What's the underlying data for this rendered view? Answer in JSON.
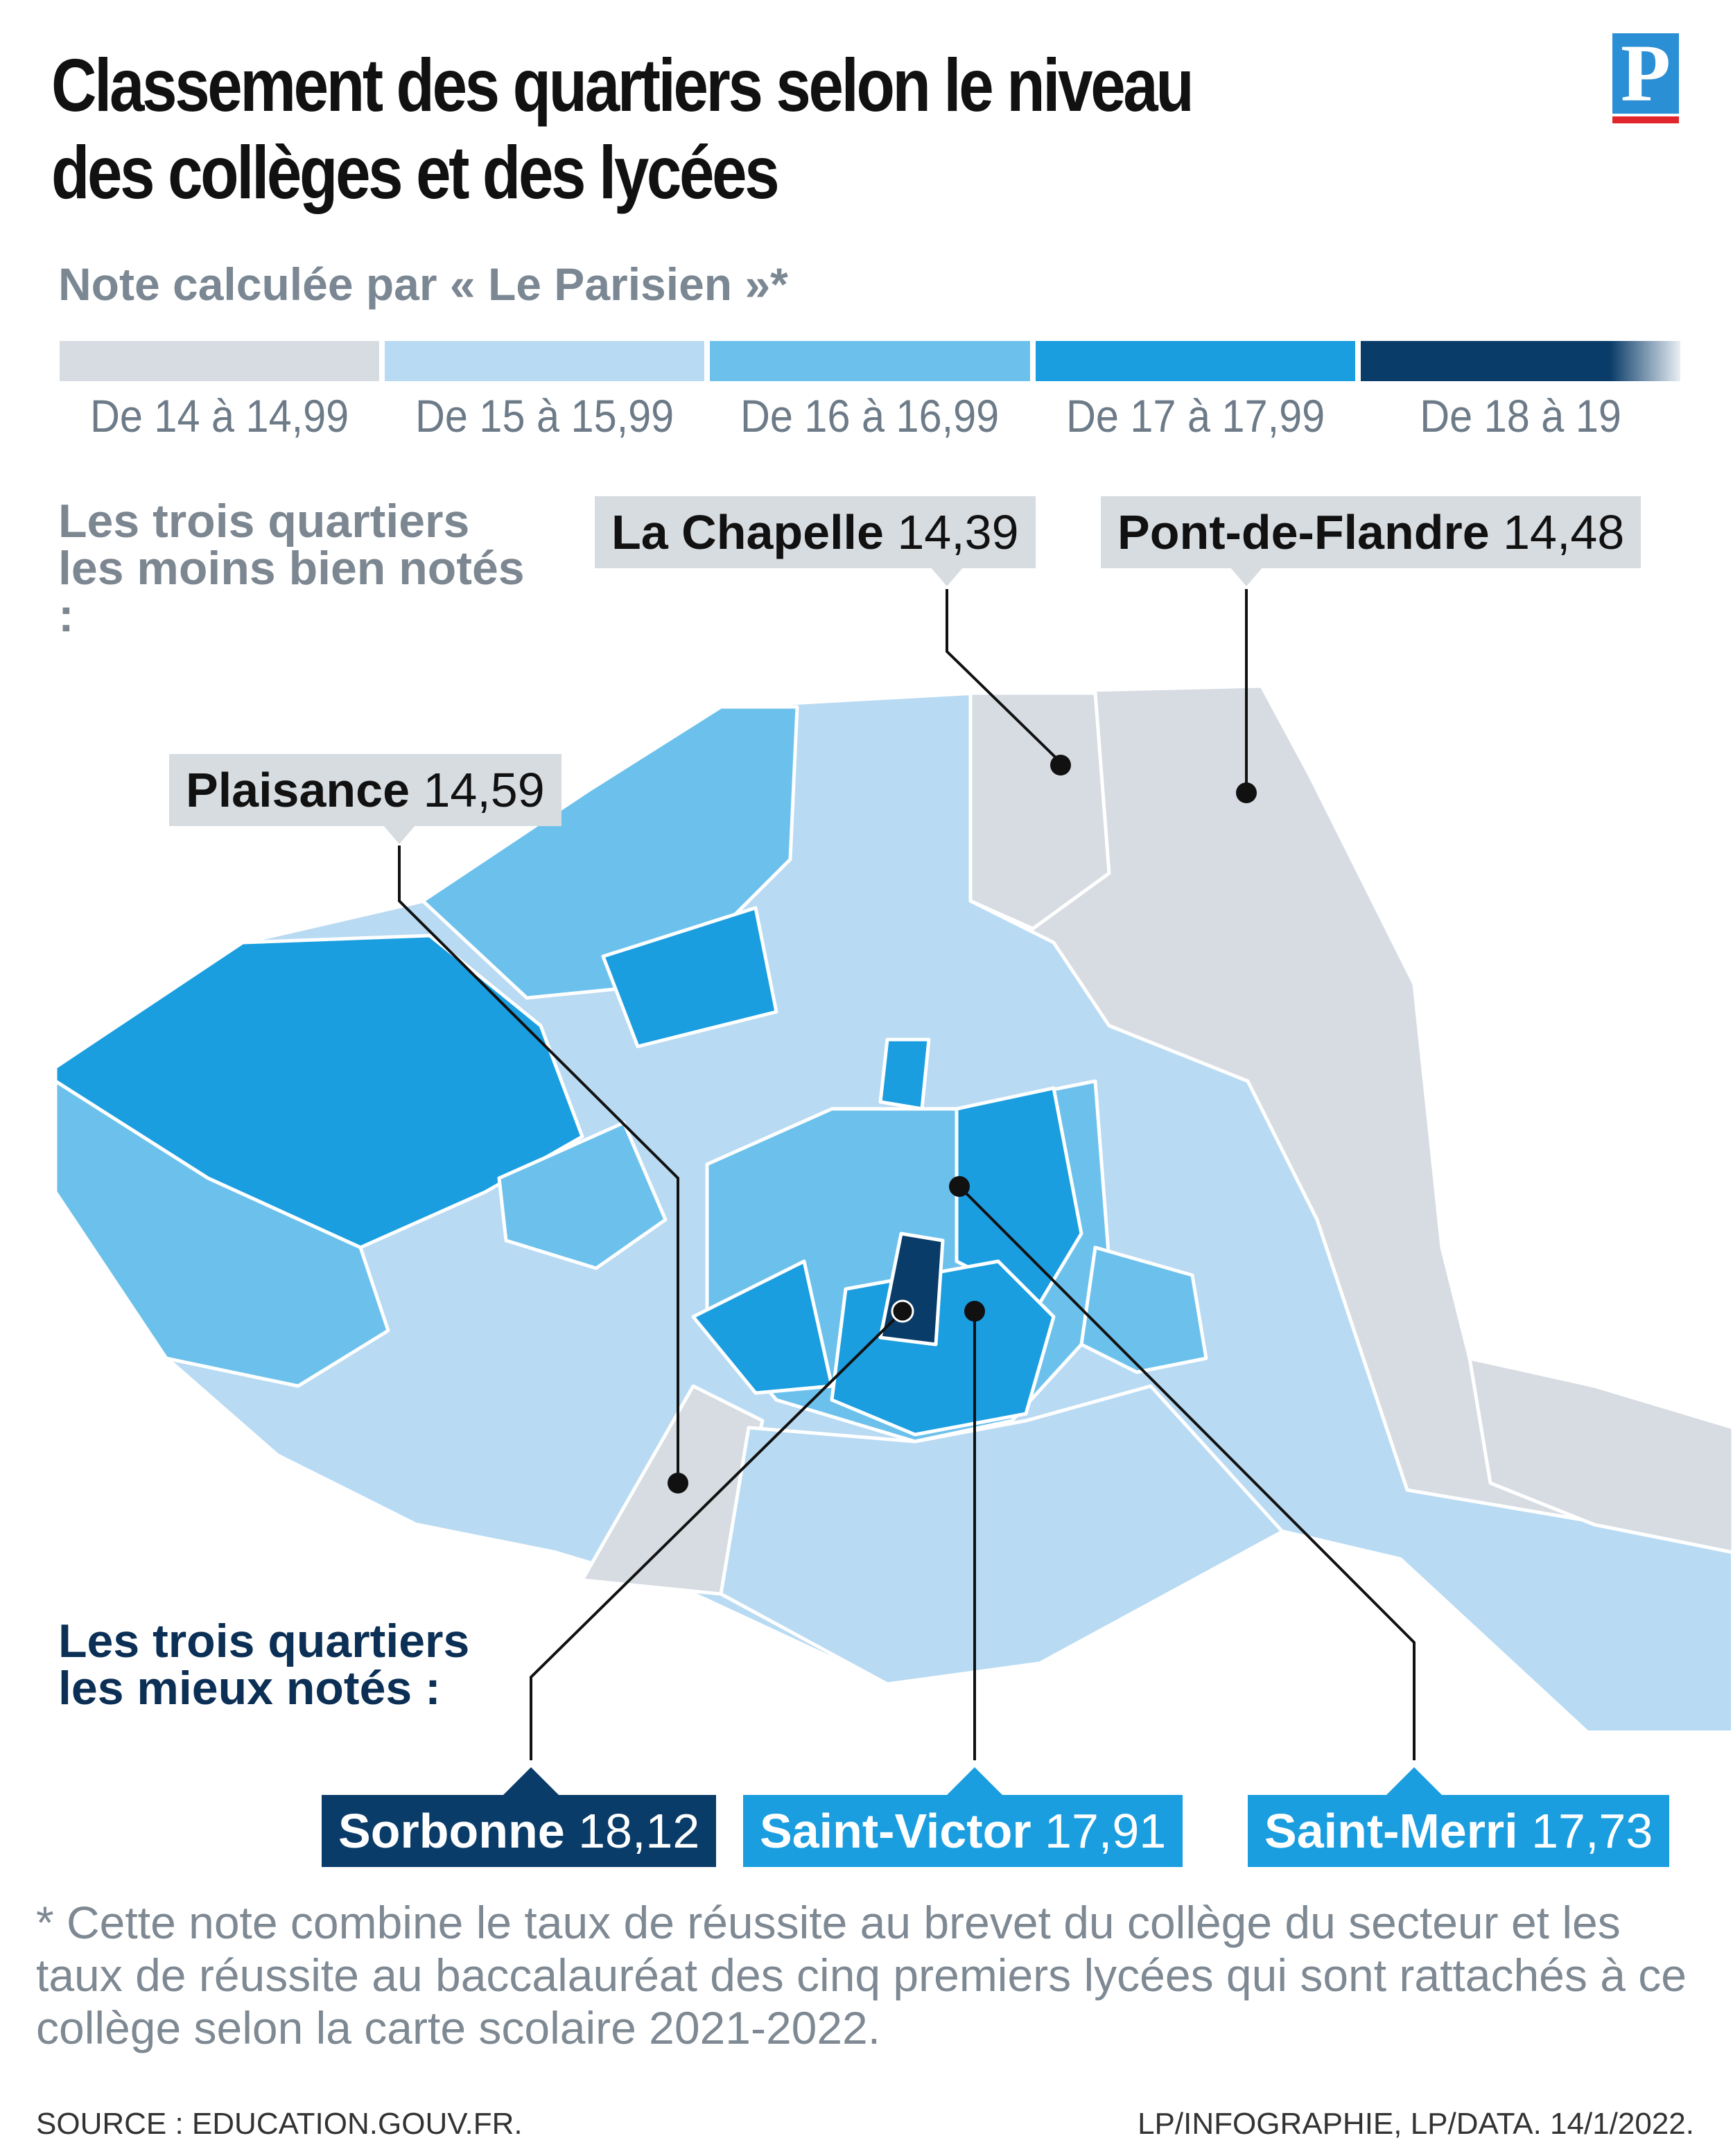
{
  "title": "Classement des quartiers selon le niveau des collèges et des lycées",
  "subtitle": "Note calculée par « Le Parisien »*",
  "logo": "P",
  "legend": [
    {
      "label": "De 14 à 14,99",
      "color": "#d6dce2"
    },
    {
      "label": "De 15 à 15,99",
      "color": "#b8daf2"
    },
    {
      "label": "De 16 à 16,99",
      "color": "#6cc1ec"
    },
    {
      "label": "De 17 à 17,99",
      "color": "#1a9ee0"
    },
    {
      "label": "De 18 à 19",
      "color": "#0a3c69"
    }
  ],
  "worst_label": "Les trois quartiers les moins bien notés :",
  "best_label": "Les trois quartiers les mieux notés :",
  "worst": [
    {
      "name": "La Chapelle",
      "score": "14,39"
    },
    {
      "name": "Pont-de-Flandre",
      "score": "14,48"
    },
    {
      "name": "Plaisance",
      "score": "14,59"
    }
  ],
  "best": [
    {
      "name": "Sorbonne",
      "score": "18,12"
    },
    {
      "name": "Saint-Victor",
      "score": "17,91"
    },
    {
      "name": "Saint-Merri",
      "score": "17,73"
    }
  ],
  "footnote": "* Cette note combine le taux de réussite au brevet du collège du secteur et les taux de réussite au baccalauréat des cinq premiers lycées qui sont rattachés à ce collège selon la carte scolaire 2021-2022.",
  "source": "SOURCE :  EDUCATION.GOUV.FR.",
  "credit": "LP/INFOGRAPHIE, LP/DATA.  14/1/2022."
}
